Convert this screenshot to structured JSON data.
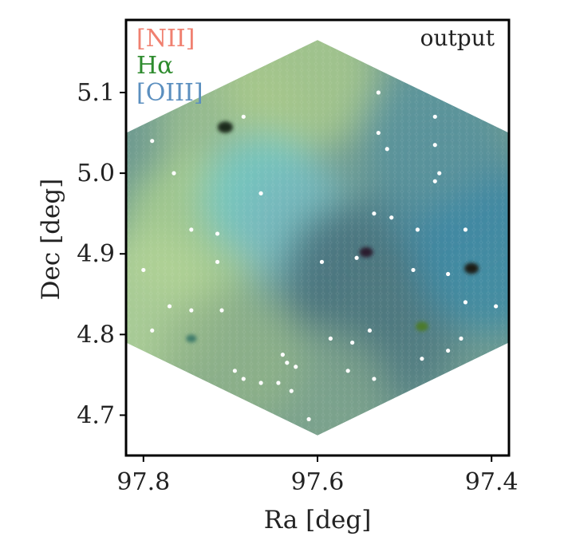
{
  "chart_data": {
    "type": "heatmap",
    "title": "",
    "corner_label": "output",
    "xlabel": "Ra [deg]",
    "ylabel": "Dec [deg]",
    "x_inverted": true,
    "xlim": [
      97.82,
      97.38
    ],
    "ylim": [
      4.65,
      5.19
    ],
    "x_ticks": [
      {
        "value": 97.8,
        "label": "97.8"
      },
      {
        "value": 97.6,
        "label": "97.6"
      },
      {
        "value": 97.4,
        "label": "97.4"
      }
    ],
    "y_ticks": [
      {
        "value": 4.7,
        "label": "4.7"
      },
      {
        "value": 4.8,
        "label": "4.8"
      },
      {
        "value": 4.9,
        "label": "4.9"
      },
      {
        "value": 5.0,
        "label": "5.0"
      },
      {
        "value": 5.1,
        "label": "5.1"
      }
    ],
    "legend": {
      "placement": "top-left",
      "entries": [
        {
          "label": "[NII]",
          "color": "#f08070"
        },
        {
          "label": "Hα",
          "color": "#2e8b2e"
        },
        {
          "label": "[OIII]",
          "color": "#5b8fbf"
        }
      ]
    },
    "footprint_vertices": [
      {
        "ra": 97.6,
        "dec": 5.165
      },
      {
        "ra": 97.38,
        "dec": 5.05
      },
      {
        "ra": 97.38,
        "dec": 4.79
      },
      {
        "ra": 97.6,
        "dec": 4.675
      },
      {
        "ra": 97.82,
        "dec": 4.79
      },
      {
        "ra": 97.82,
        "dec": 5.05
      }
    ],
    "color_regions": [
      {
        "ra": 97.7,
        "dec": 5.06,
        "color": "#9cc08f",
        "weight": 0.9
      },
      {
        "ra": 97.62,
        "dec": 5.12,
        "color": "#a8c98c",
        "weight": 1.0
      },
      {
        "ra": 97.74,
        "dec": 4.93,
        "color": "#a9cf8f",
        "weight": 0.9
      },
      {
        "ra": 97.8,
        "dec": 4.83,
        "color": "#b3d497",
        "weight": 1.0
      },
      {
        "ra": 97.66,
        "dec": 4.97,
        "color": "#6fc6c6",
        "weight": 0.6
      },
      {
        "ra": 97.62,
        "dec": 4.93,
        "color": "#79b9bd",
        "weight": 0.6
      },
      {
        "ra": 97.55,
        "dec": 4.87,
        "color": "#466f79",
        "weight": 1.0
      },
      {
        "ra": 97.52,
        "dec": 4.8,
        "color": "#4f7a80",
        "weight": 0.8
      },
      {
        "ra": 97.45,
        "dec": 4.98,
        "color": "#4f8a9a",
        "weight": 0.9
      },
      {
        "ra": 97.4,
        "dec": 4.9,
        "color": "#3d8aa4",
        "weight": 1.0
      },
      {
        "ra": 97.47,
        "dec": 5.05,
        "color": "#5a949c",
        "weight": 0.8
      },
      {
        "ra": 97.6,
        "dec": 4.72,
        "color": "#7ea38c",
        "weight": 0.8
      },
      {
        "ra": 97.7,
        "dec": 4.77,
        "color": "#8fb388",
        "weight": 0.8
      }
    ],
    "dark_spots": [
      {
        "ra": 97.706,
        "dec": 5.057,
        "color": "#1b2a1a",
        "size": 1.6
      },
      {
        "ra": 97.544,
        "dec": 4.902,
        "color": "#2a1a2e",
        "size": 1.4
      },
      {
        "ra": 97.423,
        "dec": 4.882,
        "color": "#1a1f14",
        "size": 1.5
      },
      {
        "ra": 97.48,
        "dec": 4.81,
        "color": "#4c7a2c",
        "size": 1.3
      },
      {
        "ra": 97.745,
        "dec": 4.795,
        "color": "#3f7c6a",
        "size": 1.1
      }
    ],
    "white_points": [
      {
        "ra": 97.685,
        "dec": 5.07
      },
      {
        "ra": 97.53,
        "dec": 5.1
      },
      {
        "ra": 97.53,
        "dec": 5.05
      },
      {
        "ra": 97.465,
        "dec": 5.07
      },
      {
        "ra": 97.79,
        "dec": 5.04
      },
      {
        "ra": 97.765,
        "dec": 5.0
      },
      {
        "ra": 97.52,
        "dec": 5.03
      },
      {
        "ra": 97.465,
        "dec": 5.035
      },
      {
        "ra": 97.46,
        "dec": 5.0
      },
      {
        "ra": 97.465,
        "dec": 4.99
      },
      {
        "ra": 97.665,
        "dec": 4.975
      },
      {
        "ra": 97.535,
        "dec": 4.95
      },
      {
        "ra": 97.515,
        "dec": 4.945
      },
      {
        "ra": 97.745,
        "dec": 4.93
      },
      {
        "ra": 97.715,
        "dec": 4.925
      },
      {
        "ra": 97.485,
        "dec": 4.93
      },
      {
        "ra": 97.43,
        "dec": 4.93
      },
      {
        "ra": 97.595,
        "dec": 4.89
      },
      {
        "ra": 97.555,
        "dec": 4.895
      },
      {
        "ra": 97.49,
        "dec": 4.88
      },
      {
        "ra": 97.8,
        "dec": 4.88
      },
      {
        "ra": 97.715,
        "dec": 4.89
      },
      {
        "ra": 97.45,
        "dec": 4.875
      },
      {
        "ra": 97.43,
        "dec": 4.84
      },
      {
        "ra": 97.395,
        "dec": 4.835
      },
      {
        "ra": 97.77,
        "dec": 4.835
      },
      {
        "ra": 97.745,
        "dec": 4.83
      },
      {
        "ra": 97.71,
        "dec": 4.83
      },
      {
        "ra": 97.79,
        "dec": 4.805
      },
      {
        "ra": 97.54,
        "dec": 4.805
      },
      {
        "ra": 97.56,
        "dec": 4.79
      },
      {
        "ra": 97.435,
        "dec": 4.795
      },
      {
        "ra": 97.585,
        "dec": 4.795
      },
      {
        "ra": 97.64,
        "dec": 4.775
      },
      {
        "ra": 97.635,
        "dec": 4.765
      },
      {
        "ra": 97.625,
        "dec": 4.76
      },
      {
        "ra": 97.48,
        "dec": 4.77
      },
      {
        "ra": 97.45,
        "dec": 4.78
      },
      {
        "ra": 97.695,
        "dec": 4.755
      },
      {
        "ra": 97.565,
        "dec": 4.755
      },
      {
        "ra": 97.685,
        "dec": 4.745
      },
      {
        "ra": 97.665,
        "dec": 4.74
      },
      {
        "ra": 97.645,
        "dec": 4.74
      },
      {
        "ra": 97.535,
        "dec": 4.745
      },
      {
        "ra": 97.63,
        "dec": 4.73
      },
      {
        "ra": 97.61,
        "dec": 4.695
      }
    ]
  }
}
